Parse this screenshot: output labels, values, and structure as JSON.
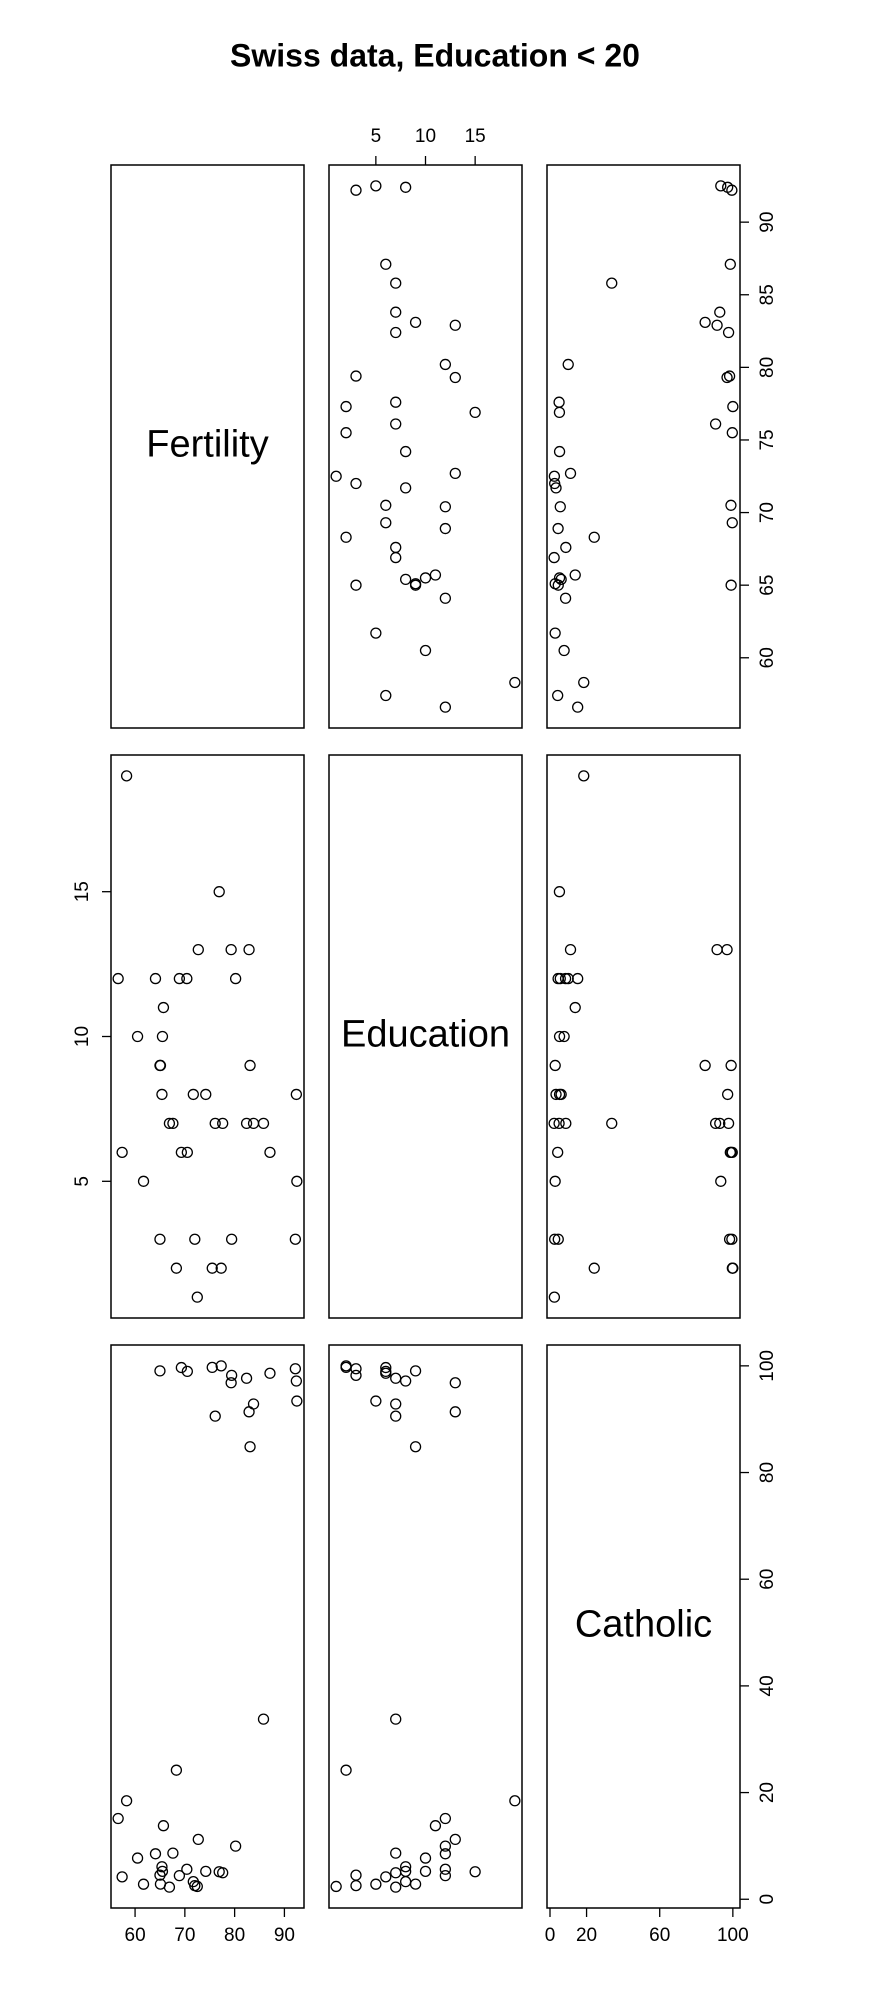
{
  "chart_data": {
    "type": "scatter-matrix",
    "title": "Swiss data, Education < 20",
    "variables": [
      {
        "name": "Fertility",
        "lim": [
          55.164,
          93.936
        ],
        "ticks": [
          60,
          65,
          70,
          75,
          80,
          85,
          90
        ],
        "bottom_ticks": [
          60,
          70,
          80,
          90
        ],
        "values": [
          80.2,
          83.1,
          92.5,
          85.8,
          76.9,
          76.1,
          83.8,
          92.4,
          82.4,
          82.9,
          87.1,
          64.1,
          66.9,
          68.9,
          61.7,
          68.3,
          71.7,
          65.1,
          65.5,
          65.0,
          56.6,
          57.4,
          72.5,
          74.2,
          72.0,
          60.5,
          58.3,
          65.4,
          75.5,
          69.3,
          77.3,
          70.5,
          79.4,
          65.0,
          92.2,
          79.3,
          70.4,
          65.7,
          72.7,
          77.6,
          67.6
        ]
      },
      {
        "name": "Education",
        "lim": [
          0.28,
          19.72
        ],
        "ticks": [
          5,
          10,
          15
        ],
        "values": [
          12,
          9,
          5,
          7,
          15,
          7,
          7,
          8,
          7,
          13,
          6,
          12,
          7,
          12,
          5,
          2,
          8,
          9,
          10,
          3,
          12,
          6,
          1,
          8,
          3,
          10,
          19,
          8,
          2,
          6,
          2,
          6,
          3,
          9,
          3,
          13,
          12,
          11,
          13,
          7,
          7
        ]
      },
      {
        "name": "Catholic",
        "lim": [
          -1.64,
          103.91
        ],
        "ticks": [
          0,
          20,
          40,
          60,
          80,
          100
        ],
        "bottom_ticks": [
          0,
          20,
          60,
          100
        ],
        "values": [
          9.96,
          84.84,
          93.4,
          33.77,
          5.16,
          90.57,
          92.85,
          97.16,
          97.67,
          91.38,
          98.61,
          8.52,
          2.27,
          4.43,
          2.82,
          24.2,
          3.3,
          2.84,
          5.23,
          4.52,
          15.14,
          4.2,
          2.4,
          5.23,
          2.56,
          7.72,
          18.46,
          6.1,
          99.71,
          99.68,
          100.0,
          98.96,
          98.22,
          99.06,
          99.46,
          96.83,
          5.62,
          13.79,
          11.22,
          4.97,
          8.65
        ]
      }
    ]
  }
}
